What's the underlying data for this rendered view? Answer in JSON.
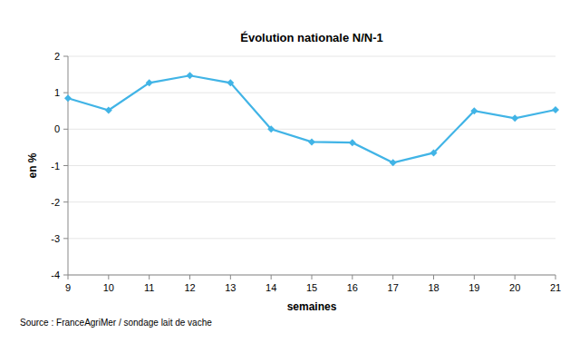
{
  "chart_data": {
    "type": "line",
    "title": "Évolution nationale N/N-1",
    "x_label": "semaines",
    "y_label": "en %",
    "source": "Source : FranceAgriMer / sondage lait de vache",
    "x": [
      9,
      10,
      11,
      12,
      13,
      14,
      15,
      16,
      17,
      18,
      19,
      20,
      21
    ],
    "values": [
      0.85,
      0.52,
      1.27,
      1.47,
      1.27,
      0.0,
      -0.35,
      -0.37,
      -0.92,
      -0.65,
      0.5,
      0.3,
      0.53
    ],
    "color": "#41b4e6",
    "marker": "diamond",
    "line_style": "solid",
    "xlim": [
      9,
      21
    ],
    "xticks": [
      9,
      10,
      11,
      12,
      13,
      14,
      15,
      16,
      17,
      18,
      19,
      20,
      21
    ],
    "ylim": [
      -4,
      2
    ],
    "yticks": [
      -4,
      -3,
      -2,
      -1,
      0,
      1,
      2
    ],
    "grid": true
  }
}
